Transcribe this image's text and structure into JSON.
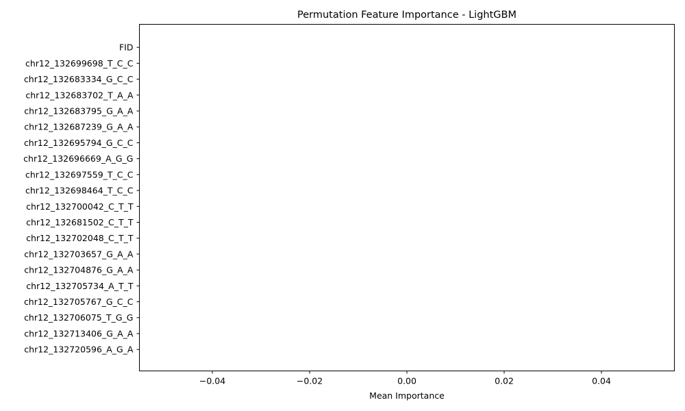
{
  "chart_data": {
    "type": "bar",
    "orientation": "horizontal",
    "title": "Permutation Feature Importance - LightGBM",
    "xlabel": "Mean Importance",
    "ylabel": "",
    "categories": [
      "FID",
      "chr12_132699698_T_C_C",
      "chr12_132683334_G_C_C",
      "chr12_132683702_T_A_A",
      "chr12_132683795_G_A_A",
      "chr12_132687239_G_A_A",
      "chr12_132695794_G_C_C",
      "chr12_132696669_A_G_G",
      "chr12_132697559_T_C_C",
      "chr12_132698464_T_C_C",
      "chr12_132700042_C_T_T",
      "chr12_132681502_C_T_T",
      "chr12_132702048_C_T_T",
      "chr12_132703657_G_A_A",
      "chr12_132704876_G_A_A",
      "chr12_132705734_A_T_T",
      "chr12_132705767_G_C_C",
      "chr12_132706075_T_G_G",
      "chr12_132713406_G_A_A",
      "chr12_132720596_A_G_A"
    ],
    "values": [
      0,
      0,
      0,
      0,
      0,
      0,
      0,
      0,
      0,
      0,
      0,
      0,
      0,
      0,
      0,
      0,
      0,
      0,
      0,
      0
    ],
    "xlim": [
      -0.055,
      0.055
    ],
    "xticks": [
      -0.04,
      -0.02,
      0.0,
      0.02,
      0.04
    ],
    "xtick_labels": [
      "−0.04",
      "−0.02",
      "0.00",
      "0.02",
      "0.04"
    ],
    "bar_color": "#1f77b4",
    "grid": false,
    "legend": "none"
  }
}
